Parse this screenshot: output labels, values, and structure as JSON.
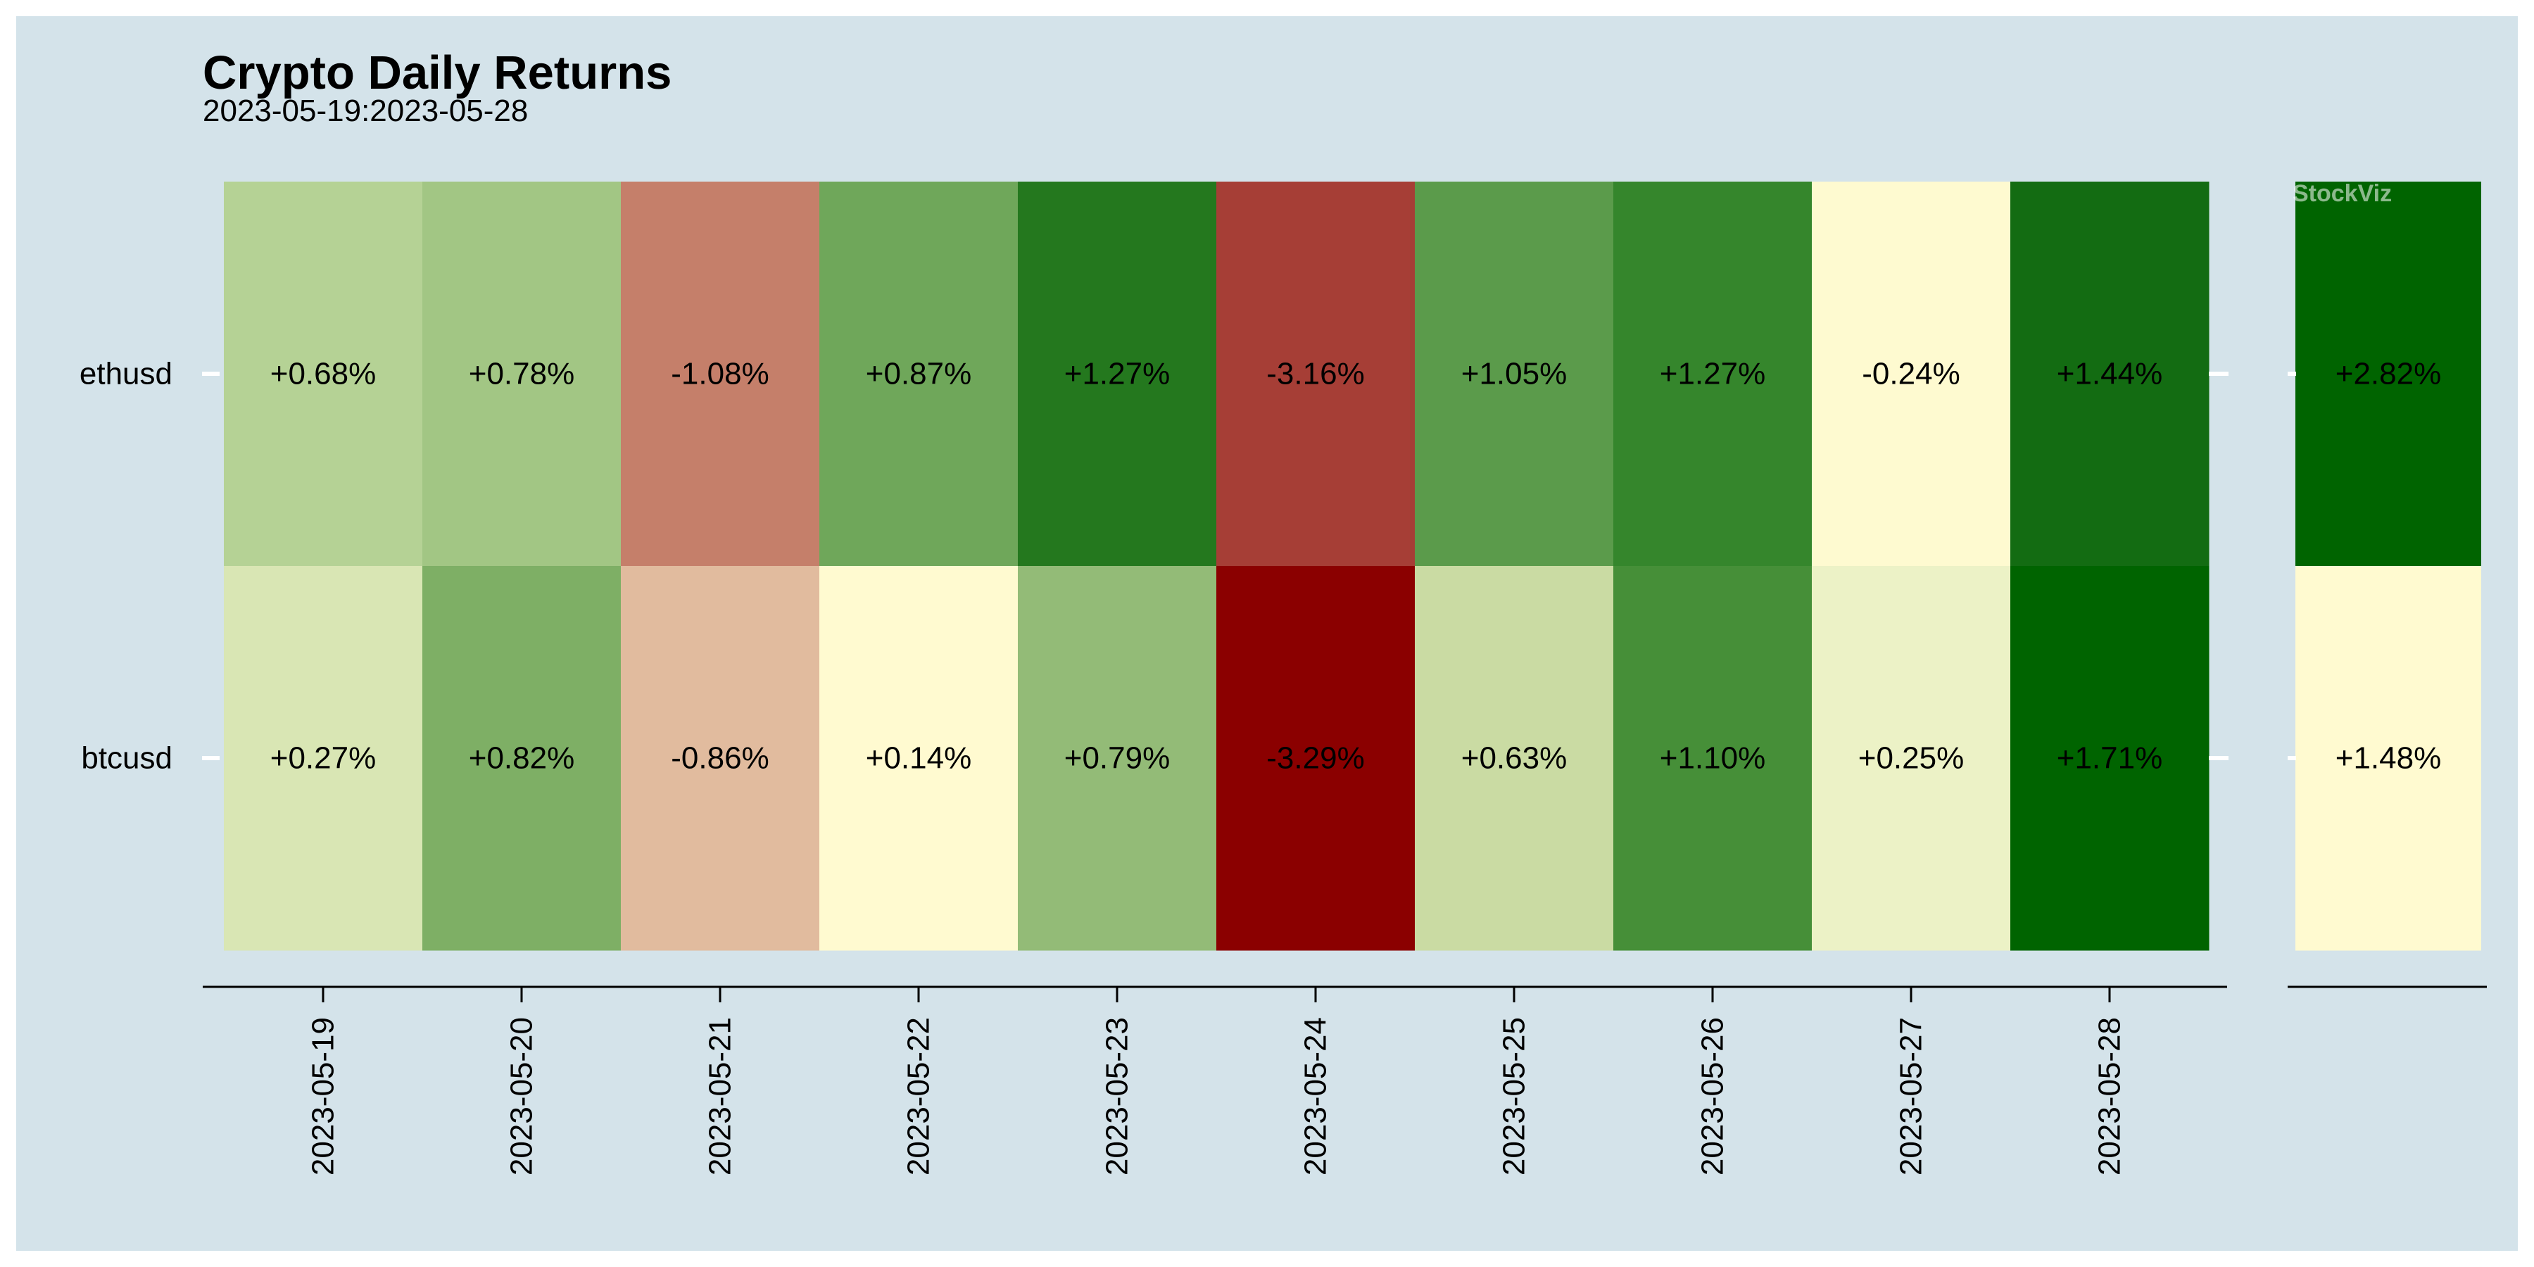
{
  "chart_data": {
    "type": "heatmap",
    "title": "Crypto Daily Returns",
    "subtitle": "2023-05-19:2023-05-28",
    "watermark": "StockViz",
    "rows": [
      "ethusd",
      "btcusd"
    ],
    "columns": [
      "2023-05-19",
      "2023-05-20",
      "2023-05-21",
      "2023-05-22",
      "2023-05-23",
      "2023-05-24",
      "2023-05-25",
      "2023-05-26",
      "2023-05-27",
      "2023-05-28"
    ],
    "values": [
      [
        0.68,
        0.78,
        -1.08,
        0.87,
        1.27,
        -3.16,
        1.05,
        1.27,
        -0.24,
        1.44
      ],
      [
        0.27,
        0.82,
        -0.86,
        0.14,
        0.79,
        -3.29,
        0.63,
        1.1,
        0.25,
        1.71
      ]
    ],
    "labels": [
      [
        "+0.68%",
        "+0.78%",
        "-1.08%",
        "+0.87%",
        "+1.27%",
        "-3.16%",
        "+1.05%",
        "+1.27%",
        "-0.24%",
        "+1.44%"
      ],
      [
        "+0.27%",
        "+0.82%",
        "-0.86%",
        "+0.14%",
        "+0.79%",
        "-3.29%",
        "+0.63%",
        "+1.10%",
        "+0.25%",
        "+1.71%"
      ]
    ],
    "cell_colors": [
      [
        "#b5d295",
        "#a2c684",
        "#c57f6a",
        "#6fa75a",
        "#24781e",
        "#a63e36",
        "#5b9b4b",
        "#35862c",
        "#fefad0",
        "#136c12"
      ],
      [
        "#d9e6b4",
        "#7eaf65",
        "#e1bb9e",
        "#fffad0",
        "#93bb77",
        "#8b0000",
        "#cadba3",
        "#468f38",
        "#ecf2c6",
        "#006400"
      ]
    ],
    "totals": {
      "values": [
        2.82,
        1.48
      ],
      "labels": [
        "+2.82%",
        "+1.48%"
      ],
      "cell_colors": [
        "#006400",
        "#fffad0"
      ]
    }
  }
}
